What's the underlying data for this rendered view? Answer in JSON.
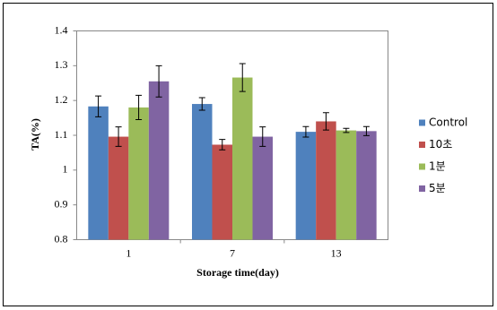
{
  "chart_data": {
    "type": "bar",
    "categories": [
      "1",
      "7",
      "13"
    ],
    "x_label": "Storage time(day)",
    "y_label": "TA(%)",
    "series": [
      {
        "name": "Control",
        "color": "#4f81bd",
        "values": [
          1.183,
          1.19,
          1.11
        ],
        "errors": [
          0.03,
          0.018,
          0.015
        ]
      },
      {
        "name": "10초",
        "color": "#c0504d",
        "values": [
          1.096,
          1.073,
          1.14
        ],
        "errors": [
          0.028,
          0.015,
          0.025
        ]
      },
      {
        "name": "1분",
        "color": "#9bbb59",
        "values": [
          1.18,
          1.266,
          1.114
        ],
        "errors": [
          0.035,
          0.04,
          0.006
        ]
      },
      {
        "name": "5분",
        "color": "#8064a2",
        "values": [
          1.255,
          1.096,
          1.112
        ],
        "errors": [
          0.045,
          0.028,
          0.013
        ]
      }
    ],
    "ylim": [
      0.8,
      1.4
    ],
    "yticks": [
      1.4,
      1.3,
      1.2,
      1.1,
      1,
      0.9,
      0.8
    ],
    "legend": "right"
  }
}
